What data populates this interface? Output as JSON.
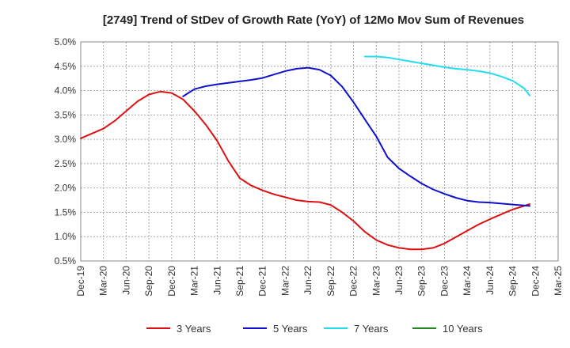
{
  "chart_data": {
    "type": "line",
    "title": "[2749]  Trend of StDev of Growth Rate (YoY) of 12Mo Mov Sum of Revenues",
    "xlabel": "",
    "ylabel": "",
    "x_categories": [
      "Dec-19",
      "Mar-20",
      "Jun-20",
      "Sep-20",
      "Dec-20",
      "Mar-21",
      "Jun-21",
      "Sep-21",
      "Dec-21",
      "Mar-22",
      "Jun-22",
      "Sep-22",
      "Dec-22",
      "Mar-23",
      "Jun-23",
      "Sep-23",
      "Dec-23",
      "Mar-24",
      "Jun-24",
      "Sep-24",
      "Dec-24",
      "Mar-25"
    ],
    "yticks": [
      "0.5%",
      "1.0%",
      "1.5%",
      "2.0%",
      "2.5%",
      "3.0%",
      "3.5%",
      "4.0%",
      "4.5%",
      "5.0%"
    ],
    "ylim": [
      0.5,
      5.0
    ],
    "grid": true,
    "legend_position": "bottom",
    "series": [
      {
        "name": "3 Years",
        "color": "#dd1111",
        "points": [
          [
            0,
            3.02
          ],
          [
            0.5,
            3.12
          ],
          [
            1,
            3.22
          ],
          [
            1.5,
            3.38
          ],
          [
            2,
            3.58
          ],
          [
            2.5,
            3.78
          ],
          [
            3,
            3.92
          ],
          [
            3.5,
            3.98
          ],
          [
            4,
            3.95
          ],
          [
            4.5,
            3.82
          ],
          [
            5,
            3.58
          ],
          [
            5.5,
            3.3
          ],
          [
            6,
            2.97
          ],
          [
            6.5,
            2.55
          ],
          [
            7,
            2.2
          ],
          [
            7.5,
            2.05
          ],
          [
            8,
            1.95
          ],
          [
            8.5,
            1.87
          ],
          [
            9,
            1.81
          ],
          [
            9.5,
            1.75
          ],
          [
            10,
            1.72
          ],
          [
            10.5,
            1.71
          ],
          [
            11,
            1.65
          ],
          [
            11.5,
            1.5
          ],
          [
            12,
            1.32
          ],
          [
            12.5,
            1.1
          ],
          [
            13,
            0.93
          ],
          [
            13.5,
            0.83
          ],
          [
            14,
            0.77
          ],
          [
            14.5,
            0.74
          ],
          [
            15,
            0.74
          ],
          [
            15.5,
            0.77
          ],
          [
            16,
            0.86
          ],
          [
            16.5,
            0.99
          ],
          [
            17,
            1.12
          ],
          [
            17.5,
            1.25
          ],
          [
            18,
            1.36
          ],
          [
            18.5,
            1.46
          ],
          [
            19,
            1.56
          ],
          [
            19.5,
            1.63
          ],
          [
            19.75,
            1.67
          ]
        ]
      },
      {
        "name": "5 Years",
        "color": "#1111cc",
        "points": [
          [
            4.5,
            3.88
          ],
          [
            5,
            4.03
          ],
          [
            5.5,
            4.09
          ],
          [
            6,
            4.13
          ],
          [
            6.5,
            4.16
          ],
          [
            7,
            4.19
          ],
          [
            7.5,
            4.22
          ],
          [
            8,
            4.26
          ],
          [
            8.5,
            4.33
          ],
          [
            9,
            4.4
          ],
          [
            9.5,
            4.45
          ],
          [
            10,
            4.47
          ],
          [
            10.5,
            4.43
          ],
          [
            11,
            4.31
          ],
          [
            11.5,
            4.08
          ],
          [
            12,
            3.76
          ],
          [
            12.5,
            3.41
          ],
          [
            13,
            3.06
          ],
          [
            13.5,
            2.63
          ],
          [
            14,
            2.4
          ],
          [
            14.5,
            2.24
          ],
          [
            15,
            2.09
          ],
          [
            15.5,
            1.97
          ],
          [
            16,
            1.88
          ],
          [
            16.5,
            1.8
          ],
          [
            17,
            1.74
          ],
          [
            17.5,
            1.71
          ],
          [
            18,
            1.7
          ],
          [
            18.5,
            1.68
          ],
          [
            19,
            1.66
          ],
          [
            19.5,
            1.64
          ],
          [
            19.75,
            1.63
          ]
        ]
      },
      {
        "name": "7 Years",
        "color": "#22ddee",
        "points": [
          [
            12.5,
            4.7
          ],
          [
            13,
            4.7
          ],
          [
            13.5,
            4.68
          ],
          [
            14,
            4.64
          ],
          [
            14.5,
            4.6
          ],
          [
            15,
            4.56
          ],
          [
            15.5,
            4.52
          ],
          [
            16,
            4.48
          ],
          [
            16.5,
            4.45
          ],
          [
            17,
            4.43
          ],
          [
            17.5,
            4.4
          ],
          [
            18,
            4.36
          ],
          [
            18.5,
            4.29
          ],
          [
            19,
            4.2
          ],
          [
            19.5,
            4.05
          ],
          [
            19.75,
            3.9
          ]
        ]
      },
      {
        "name": "10 Years",
        "color": "#228822",
        "points": []
      }
    ]
  }
}
